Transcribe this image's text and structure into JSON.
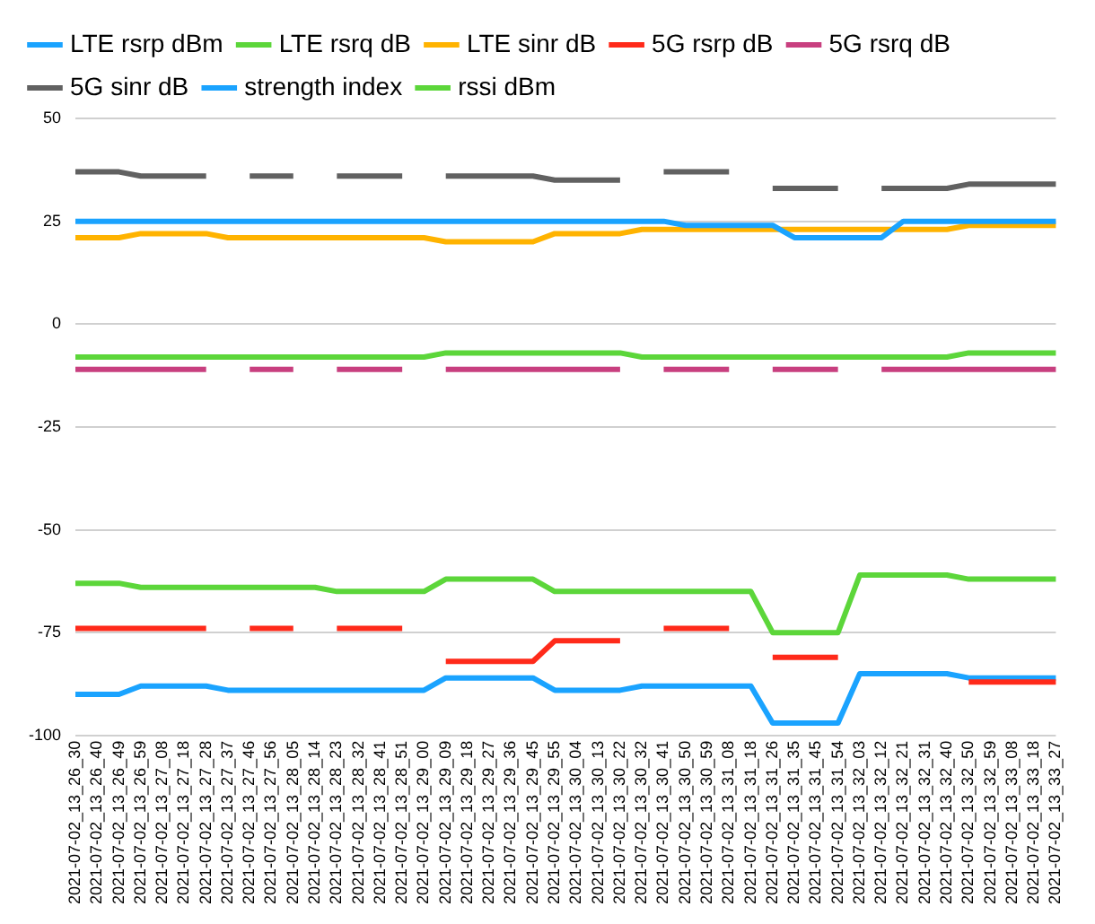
{
  "chart_data": {
    "type": "line",
    "categories": [
      "2021-07-02_13_26_30",
      "2021-07-02_13_26_40",
      "2021-07-02_13_26_49",
      "2021-07-02_13_26_59",
      "2021-07-02_13_27_08",
      "2021-07-02_13_27_18",
      "2021-07-02_13_27_28",
      "2021-07-02_13_27_37",
      "2021-07-02_13_27_46",
      "2021-07-02_13_27_56",
      "2021-07-02_13_28_05",
      "2021-07-02_13_28_14",
      "2021-07-02_13_28_23",
      "2021-07-02_13_28_32",
      "2021-07-02_13_28_41",
      "2021-07-02_13_28_51",
      "2021-07-02_13_29_00",
      "2021-07-02_13_29_09",
      "2021-07-02_13_29_18",
      "2021-07-02_13_29_27",
      "2021-07-02_13_29_36",
      "2021-07-02_13_29_45",
      "2021-07-02_13_29_55",
      "2021-07-02_13_30_04",
      "2021-07-02_13_30_13",
      "2021-07-02_13_30_22",
      "2021-07-02_13_30_32",
      "2021-07-02_13_30_41",
      "2021-07-02_13_30_50",
      "2021-07-02_13_30_59",
      "2021-07-02_13_31_08",
      "2021-07-02_13_31_18",
      "2021-07-02_13_31_26",
      "2021-07-02_13_31_35",
      "2021-07-02_13_31_45",
      "2021-07-02_13_31_54",
      "2021-07-02_13_32_03",
      "2021-07-02_13_32_12",
      "2021-07-02_13_32_21",
      "2021-07-02_13_32_31",
      "2021-07-02_13_32_40",
      "2021-07-02_13_32_50",
      "2021-07-02_13_32_59",
      "2021-07-02_13_33_08",
      "2021-07-02_13_33_18",
      "2021-07-02_13_33_27"
    ],
    "series": [
      {
        "name": "LTE rsrp dBm",
        "color": "#1aa3ff",
        "values": [
          -90,
          -90,
          -90,
          -88,
          -88,
          -88,
          -88,
          -89,
          -89,
          -89,
          -89,
          -89,
          -89,
          -89,
          -89,
          -89,
          -89,
          -86,
          -86,
          -86,
          -86,
          -86,
          -89,
          -89,
          -89,
          -89,
          -88,
          -88,
          -88,
          -88,
          -88,
          -88,
          -97,
          -97,
          -97,
          -97,
          -85,
          -85,
          -85,
          -85,
          -85,
          -86,
          -86,
          -86,
          -86,
          -86
        ]
      },
      {
        "name": "LTE rsrq dB",
        "color": "#5cd63a",
        "values": [
          -8,
          -8,
          -8,
          -8,
          -8,
          -8,
          -8,
          -8,
          -8,
          -8,
          -8,
          -8,
          -8,
          -8,
          -8,
          -8,
          -8,
          -7,
          -7,
          -7,
          -7,
          -7,
          -7,
          -7,
          -7,
          -7,
          -8,
          -8,
          -8,
          -8,
          -8,
          -8,
          -8,
          -8,
          -8,
          -8,
          -8,
          -8,
          -8,
          -8,
          -8,
          -7,
          -7,
          -7,
          -7,
          -7
        ]
      },
      {
        "name": "LTE sinr dB",
        "color": "#ffb300",
        "values": [
          21,
          21,
          21,
          22,
          22,
          22,
          22,
          21,
          21,
          21,
          21,
          21,
          21,
          21,
          21,
          21,
          21,
          20,
          20,
          20,
          20,
          20,
          22,
          22,
          22,
          22,
          23,
          23,
          23,
          23,
          23,
          23,
          23,
          23,
          23,
          23,
          23,
          23,
          23,
          23,
          23,
          24,
          24,
          24,
          24,
          24
        ]
      },
      {
        "name": "5G rsrp dB",
        "color": "#ff2a1a",
        "values": [
          -74,
          -74,
          -74,
          -74,
          -74,
          -74,
          -74,
          null,
          -74,
          -74,
          -74,
          null,
          -74,
          -74,
          -74,
          -74,
          null,
          -82,
          -82,
          -82,
          -82,
          -82,
          -77,
          -77,
          -77,
          -77,
          null,
          -74,
          -74,
          -74,
          -74,
          null,
          -81,
          -81,
          -81,
          -81,
          null,
          null,
          null,
          null,
          null,
          -87,
          -87,
          -87,
          -87,
          -87
        ]
      },
      {
        "name": "5G rsrq dB",
        "color": "#c83f7f",
        "values": [
          -11,
          -11,
          -11,
          -11,
          -11,
          -11,
          -11,
          null,
          -11,
          -11,
          -11,
          null,
          -11,
          -11,
          -11,
          -11,
          null,
          -11,
          -11,
          -11,
          -11,
          -11,
          -11,
          -11,
          -11,
          -11,
          null,
          -11,
          -11,
          -11,
          -11,
          null,
          -11,
          -11,
          -11,
          -11,
          null,
          -11,
          -11,
          -11,
          -11,
          -11,
          -11,
          -11,
          -11,
          -11
        ]
      },
      {
        "name": "5G sinr dB",
        "color": "#616161",
        "values": [
          37,
          37,
          37,
          36,
          36,
          36,
          36,
          null,
          36,
          36,
          36,
          null,
          36,
          36,
          36,
          36,
          null,
          36,
          36,
          36,
          36,
          36,
          35,
          35,
          35,
          35,
          null,
          37,
          37,
          37,
          37,
          null,
          33,
          33,
          33,
          33,
          null,
          33,
          33,
          33,
          33,
          34,
          34,
          34,
          34,
          34
        ]
      },
      {
        "name": "strength index",
        "color": "#1aa3ff",
        "values": [
          25,
          25,
          25,
          25,
          25,
          25,
          25,
          25,
          25,
          25,
          25,
          25,
          25,
          25,
          25,
          25,
          25,
          25,
          25,
          25,
          25,
          25,
          25,
          25,
          25,
          25,
          25,
          25,
          24,
          24,
          24,
          24,
          24,
          21,
          21,
          21,
          21,
          21,
          25,
          25,
          25,
          25,
          25,
          25,
          25,
          25
        ]
      },
      {
        "name": "rssi dBm",
        "color": "#5cd63a",
        "values": [
          -63,
          -63,
          -63,
          -64,
          -64,
          -64,
          -64,
          -64,
          -64,
          -64,
          -64,
          -64,
          -65,
          -65,
          -65,
          -65,
          -65,
          -62,
          -62,
          -62,
          -62,
          -62,
          -65,
          -65,
          -65,
          -65,
          -65,
          -65,
          -65,
          -65,
          -65,
          -65,
          -75,
          -75,
          -75,
          -75,
          -61,
          -61,
          -61,
          -61,
          -61,
          -62,
          -62,
          -62,
          -62,
          -62
        ]
      }
    ],
    "ylim": [
      -100,
      50
    ],
    "yticks": [
      -100,
      -75,
      -50,
      -25,
      0,
      25,
      50
    ],
    "grid": "y",
    "legend": "top",
    "marker": "none",
    "line_style": "solid"
  }
}
